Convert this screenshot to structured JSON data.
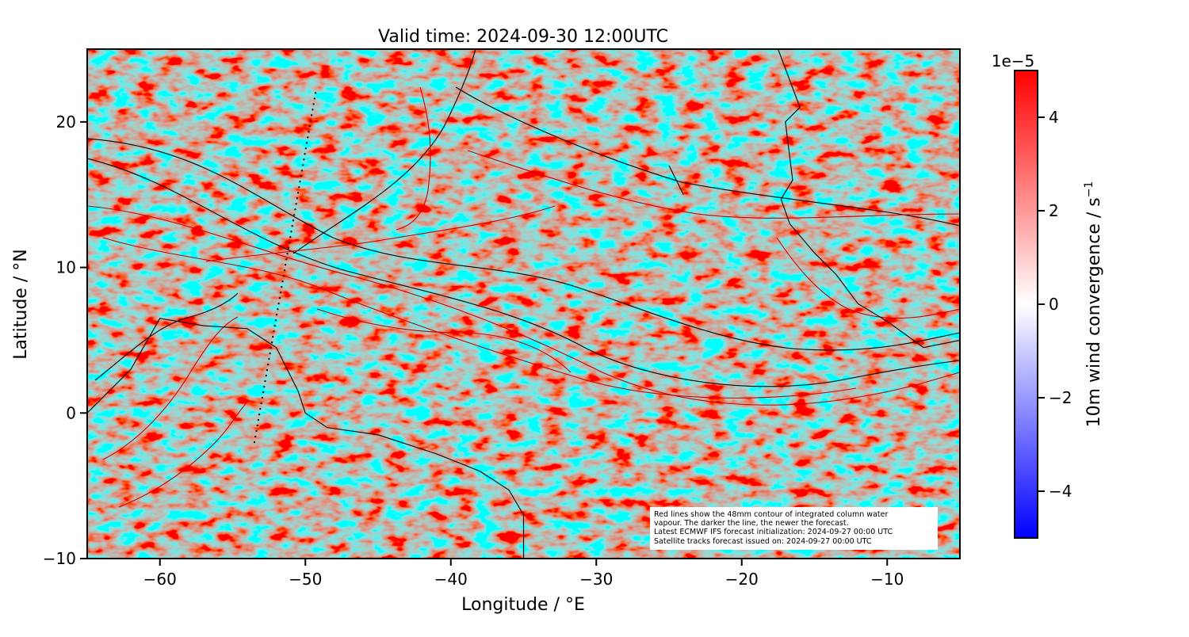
{
  "map": {
    "title": "Valid time: 2024-09-30 12:00UTC",
    "xlabel": "Longitude / °E",
    "ylabel": "Latitude / °N",
    "xlim": [
      -65,
      -5
    ],
    "ylim": [
      -10,
      25
    ],
    "xticks": [
      -60,
      -50,
      -40,
      -30,
      -20,
      -10
    ],
    "yticks": [
      -10,
      0,
      10,
      20
    ],
    "xtick_labels": [
      "−60",
      "−50",
      "−40",
      "−30",
      "−20",
      "−10"
    ],
    "ytick_labels": [
      "−10",
      "0",
      "10",
      "20"
    ],
    "field": "10m wind convergence",
    "colormap": [
      "#0000ff",
      "#ffffff",
      "#ff0000"
    ]
  },
  "colorbar": {
    "label": "10m wind convergence / s⁻¹",
    "label_base": "10m wind convergence / s",
    "label_exp": "−1",
    "scale": "1e−5",
    "range": [
      -5,
      5
    ],
    "ticks": [
      -4,
      -2,
      0,
      2,
      4
    ],
    "tick_labels": [
      "−4",
      "−2",
      "0",
      "2",
      "4"
    ]
  },
  "annotation": {
    "lines": [
      "Red lines show the 48mm contour of integrated column water",
      "vapour. The darker the line, the newer the forecast.",
      "Latest ECMWF IFS forecast initialization: 2024-09-27 00:00 UTC",
      "Satellite tracks forecast issued on: 2024-09-27 00:00 UTC"
    ]
  },
  "satellite_track": [
    [
      -53.5,
      -2
    ],
    [
      -49.3,
      22
    ]
  ],
  "coastlines": {
    "south_america": [
      [
        -65,
        0
      ],
      [
        -62,
        3
      ],
      [
        -60,
        6.5
      ],
      [
        -57,
        6
      ],
      [
        -54,
        5.8
      ],
      [
        -52,
        4.5
      ],
      [
        -50.5,
        1.5
      ],
      [
        -50,
        0
      ],
      [
        -48.5,
        -1
      ],
      [
        -45,
        -1.5
      ],
      [
        -41,
        -2.8
      ],
      [
        -38,
        -4
      ],
      [
        -36,
        -5.3
      ],
      [
        -35,
        -7
      ],
      [
        -35,
        -10
      ]
    ],
    "africa": [
      [
        -17.5,
        25
      ],
      [
        -16,
        21
      ],
      [
        -17,
        20
      ],
      [
        -16.5,
        16
      ],
      [
        -17.3,
        14.7
      ],
      [
        -16.7,
        13
      ],
      [
        -15,
        11
      ],
      [
        -13.5,
        9.5
      ],
      [
        -12,
        7.5
      ],
      [
        -10,
        6.3
      ],
      [
        -7.5,
        4.5
      ],
      [
        -5,
        5
      ]
    ],
    "cape_verde": [
      [
        -25,
        17
      ],
      [
        -24,
        15
      ]
    ]
  }
}
